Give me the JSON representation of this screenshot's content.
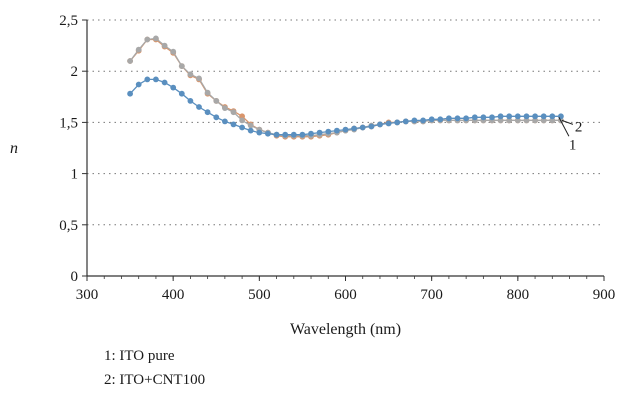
{
  "chart_data": {
    "type": "line",
    "xlabel": "Wavelength (nm)",
    "ylabel": "n",
    "xlim": [
      300,
      900
    ],
    "ylim": [
      0,
      2.5
    ],
    "xticks": [
      "300",
      "400",
      "500",
      "600",
      "700",
      "800",
      "900"
    ],
    "yticks": [
      "0",
      "0,5",
      "1",
      "1,5",
      "2",
      "2,5"
    ],
    "grid": "horizontal dotted",
    "x": [
      350,
      360,
      370,
      380,
      390,
      400,
      410,
      420,
      430,
      440,
      450,
      460,
      470,
      480,
      490,
      500,
      510,
      520,
      530,
      540,
      550,
      560,
      570,
      580,
      590,
      600,
      610,
      620,
      630,
      640,
      650,
      660,
      670,
      680,
      690,
      700,
      710,
      720,
      730,
      740,
      750,
      760,
      770,
      780,
      790,
      800,
      810,
      820,
      830,
      840,
      850
    ],
    "series": [
      {
        "name": "1",
        "color": "#5a8fbf",
        "values": [
          1.78,
          1.87,
          1.92,
          1.92,
          1.89,
          1.84,
          1.78,
          1.71,
          1.65,
          1.6,
          1.55,
          1.51,
          1.48,
          1.45,
          1.42,
          1.4,
          1.39,
          1.38,
          1.38,
          1.38,
          1.38,
          1.39,
          1.4,
          1.41,
          1.42,
          1.43,
          1.44,
          1.45,
          1.46,
          1.48,
          1.49,
          1.5,
          1.51,
          1.52,
          1.52,
          1.53,
          1.53,
          1.54,
          1.54,
          1.54,
          1.55,
          1.55,
          1.55,
          1.56,
          1.56,
          1.56,
          1.56,
          1.56,
          1.56,
          1.56,
          1.56
        ]
      },
      {
        "name": "2",
        "color": "#d9956b",
        "values": [
          2.1,
          2.2,
          2.31,
          2.31,
          2.24,
          2.18,
          2.05,
          1.96,
          1.92,
          1.78,
          1.71,
          1.65,
          1.61,
          1.56,
          1.48,
          1.43,
          1.4,
          1.37,
          1.36,
          1.36,
          1.36,
          1.36,
          1.37,
          1.38,
          1.4,
          1.42,
          1.44,
          1.45,
          1.46,
          1.48,
          1.5,
          1.5,
          1.51,
          1.51,
          1.51,
          1.52,
          1.52,
          1.52,
          1.52,
          1.52,
          1.52,
          1.52,
          1.52,
          1.52,
          1.52,
          1.52,
          1.52,
          1.52,
          1.52,
          1.52,
          1.52
        ]
      },
      {
        "name": "",
        "color": "#a8a8a8",
        "values": [
          2.1,
          2.21,
          2.31,
          2.32,
          2.25,
          2.19,
          2.05,
          1.97,
          1.93,
          1.79,
          1.71,
          1.64,
          1.6,
          1.52,
          1.47,
          1.43,
          1.4,
          1.38,
          1.37,
          1.37,
          1.37,
          1.37,
          1.38,
          1.39,
          1.4,
          1.42,
          1.43,
          1.45,
          1.47,
          1.48,
          1.49,
          1.5,
          1.51,
          1.51,
          1.51,
          1.52,
          1.52,
          1.52,
          1.52,
          1.52,
          1.52,
          1.52,
          1.52,
          1.52,
          1.52,
          1.52,
          1.52,
          1.52,
          1.52,
          1.52,
          1.52
        ]
      }
    ],
    "notes": [
      "1: ITO pure",
      "2: ITO+CNT100"
    ]
  }
}
